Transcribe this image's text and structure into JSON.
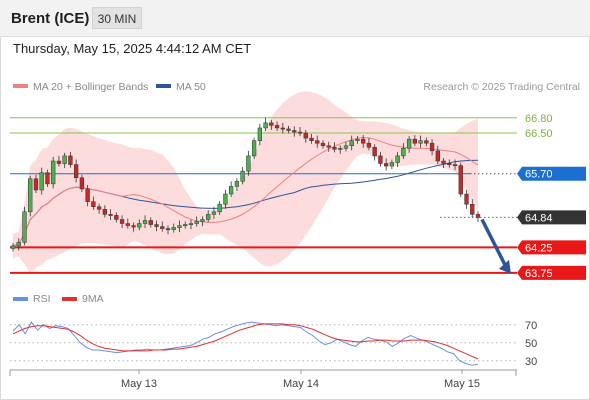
{
  "header": {
    "title": "Brent (ICE)",
    "timeframe": "30 MIN"
  },
  "datetime": "Thursday, May 15, 2025 4:44:12 AM CET",
  "legend": {
    "ma20": "MA 20 + Bollinger Bands",
    "ma50": "MA 50",
    "credit": "Research © 2025 Trading Central",
    "ma20_color": "#f08080",
    "ma50_color": "#2e5597",
    "band_color": "#fbd6d6"
  },
  "rsi_legend": {
    "rsi": "RSI",
    "ma": "9MA",
    "rsi_color": "#6a8fdc",
    "ma_color": "#e03030"
  },
  "chart_data": [
    {
      "type": "candlestick",
      "title": "",
      "x_tick_labels": [
        "May 13",
        "May 14",
        "May 15"
      ],
      "y_range": [
        63.55,
        67.15
      ],
      "levels": [
        {
          "label": "66.80",
          "value": 66.8,
          "color": "#8cc34b",
          "kind": "resistance"
        },
        {
          "label": "66.50",
          "value": 66.5,
          "color": "#8cc34b",
          "kind": "resistance"
        },
        {
          "label": "65.70",
          "value": 65.7,
          "color": "#1b6fd1",
          "kind": "pivot"
        },
        {
          "label": "64.84",
          "value": 64.84,
          "color": "#333333",
          "kind": "last price"
        },
        {
          "label": "64.25",
          "value": 64.25,
          "color": "#e81818",
          "kind": "support"
        },
        {
          "label": "63.75",
          "value": 63.75,
          "color": "#e81818",
          "kind": "support"
        }
      ],
      "bullish_color": "#4caf50",
      "bearish_color": "#c62828",
      "close_series": [
        64.28,
        64.35,
        64.95,
        65.6,
        65.38,
        65.72,
        65.5,
        65.95,
        65.9,
        66.05,
        65.88,
        65.62,
        65.4,
        65.15,
        65.05,
        65.0,
        64.9,
        64.88,
        64.8,
        64.72,
        64.68,
        64.65,
        64.72,
        64.78,
        64.7,
        64.66,
        64.62,
        64.6,
        64.64,
        64.68,
        64.7,
        64.72,
        64.76,
        64.8,
        64.9,
        64.95,
        65.1,
        65.3,
        65.45,
        65.55,
        65.75,
        66.05,
        66.35,
        66.6,
        66.7,
        66.65,
        66.6,
        66.58,
        66.55,
        66.52,
        66.5,
        66.4,
        66.35,
        66.3,
        66.25,
        66.22,
        66.18,
        66.2,
        66.25,
        66.35,
        66.38,
        66.3,
        66.22,
        66.05,
        65.9,
        65.85,
        65.92,
        66.05,
        66.2,
        66.38,
        66.3,
        66.35,
        66.3,
        66.15,
        65.95,
        65.9,
        65.88,
        65.86,
        65.3,
        65.1,
        64.9,
        64.84
      ],
      "target_arrow": {
        "from": 64.84,
        "to": 63.75
      }
    },
    {
      "type": "line",
      "title": "",
      "y_ticks": [
        70,
        50,
        30
      ],
      "y_range": [
        22,
        82
      ],
      "series": [
        {
          "name": "RSI",
          "values": [
            63,
            70,
            60,
            73,
            64,
            70,
            66,
            69,
            68,
            66,
            58,
            50,
            45,
            42,
            42,
            41,
            40,
            39,
            40,
            41,
            42,
            42,
            43,
            42,
            42,
            43,
            44,
            45,
            46,
            47,
            50,
            54,
            56,
            60,
            62,
            65,
            68,
            70,
            72,
            73,
            72,
            71,
            70,
            69,
            70,
            69,
            68,
            67,
            62,
            58,
            52,
            48,
            50,
            54,
            51,
            48,
            46,
            52,
            56,
            54,
            53,
            51,
            46,
            50,
            55,
            58,
            55,
            53,
            50,
            47,
            44,
            40,
            38,
            30,
            27,
            25,
            26
          ]
        },
        {
          "name": "9MA",
          "values": [
            60,
            63,
            66,
            68,
            69,
            69,
            68,
            67,
            66,
            65,
            62,
            58,
            53,
            49,
            46,
            44,
            43,
            42,
            41,
            41,
            41,
            41,
            41,
            42,
            42,
            42,
            43,
            43,
            44,
            45,
            46,
            48,
            50,
            52,
            55,
            58,
            61,
            64,
            66,
            68,
            70,
            71,
            71,
            71,
            71,
            70,
            70,
            69,
            67,
            65,
            62,
            59,
            56,
            54,
            53,
            52,
            51,
            51,
            52,
            52,
            53,
            53,
            52,
            52,
            52,
            53,
            53,
            53,
            52,
            51,
            49,
            47,
            44,
            41,
            38,
            35,
            32
          ]
        }
      ]
    }
  ]
}
